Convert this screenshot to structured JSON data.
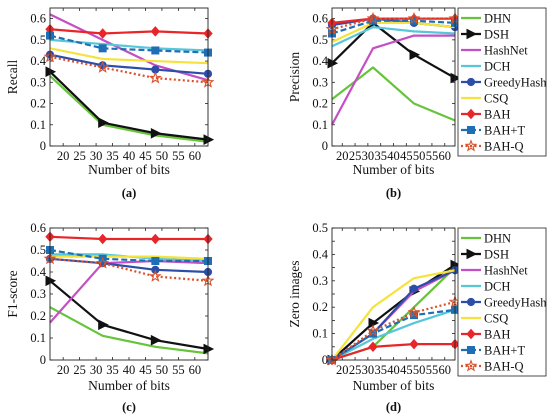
{
  "series_legend": [
    {
      "name": "DHN",
      "color": "#66c43a",
      "marker": "none",
      "dash": "solid"
    },
    {
      "name": "DSH",
      "color": "#111111",
      "marker": "triangle-right",
      "dash": "solid"
    },
    {
      "name": "HashNet",
      "color": "#c44fc4",
      "marker": "none",
      "dash": "solid"
    },
    {
      "name": "DCH",
      "color": "#56c6d9",
      "marker": "none",
      "dash": "solid"
    },
    {
      "name": "GreedyHash",
      "color": "#2d4ea8",
      "marker": "circle",
      "dash": "solid"
    },
    {
      "name": "CSQ",
      "color": "#f5e23a",
      "marker": "none",
      "dash": "solid"
    },
    {
      "name": "BAH",
      "color": "#e8262a",
      "marker": "diamond",
      "dash": "solid"
    },
    {
      "name": "BAH+T",
      "color": "#1f6fb5",
      "marker": "square",
      "dash": "dashed"
    },
    {
      "name": "BAH-Q",
      "color": "#d9512b",
      "marker": "star",
      "dash": "dotted"
    }
  ],
  "chart_data": [
    {
      "type": "line",
      "panel_label": "(a)",
      "xlabel": "Number of bits",
      "ylabel": "Recall",
      "xlim": [
        16,
        64
      ],
      "ylim": [
        0,
        0.65
      ],
      "xticks": [
        20,
        25,
        30,
        35,
        40,
        45,
        50,
        55,
        60
      ],
      "yticks": [
        0,
        0.1,
        0.2,
        0.3,
        0.4,
        0.5,
        0.6
      ],
      "x": [
        16,
        32,
        48,
        64
      ],
      "series": [
        {
          "name": "DHN",
          "values": [
            0.33,
            0.1,
            0.05,
            0.02
          ]
        },
        {
          "name": "DSH",
          "values": [
            0.35,
            0.11,
            0.06,
            0.03
          ]
        },
        {
          "name": "HashNet",
          "values": [
            0.62,
            0.5,
            0.38,
            0.31
          ]
        },
        {
          "name": "DCH",
          "values": [
            0.5,
            0.48,
            0.46,
            0.45
          ]
        },
        {
          "name": "GreedyHash",
          "values": [
            0.43,
            0.38,
            0.36,
            0.34
          ]
        },
        {
          "name": "CSQ",
          "values": [
            0.46,
            0.41,
            0.4,
            0.39
          ]
        },
        {
          "name": "BAH",
          "values": [
            0.55,
            0.53,
            0.54,
            0.53
          ]
        },
        {
          "name": "BAH+T",
          "values": [
            0.52,
            0.46,
            0.45,
            0.44
          ]
        },
        {
          "name": "BAH-Q",
          "values": [
            0.42,
            0.37,
            0.32,
            0.3
          ]
        }
      ]
    },
    {
      "type": "line",
      "panel_label": "(b)",
      "xlabel": "Number of bits",
      "ylabel": "Precision",
      "xlim": [
        16,
        64
      ],
      "ylim": [
        0,
        0.65
      ],
      "xticks": [
        20,
        25,
        30,
        35,
        40,
        45,
        50,
        55,
        60
      ],
      "yticks": [
        0,
        0.1,
        0.2,
        0.3,
        0.4,
        0.5,
        0.6
      ],
      "x": [
        16,
        32,
        48,
        64
      ],
      "series": [
        {
          "name": "DHN",
          "values": [
            0.22,
            0.37,
            0.2,
            0.12
          ]
        },
        {
          "name": "DSH",
          "values": [
            0.39,
            0.58,
            0.43,
            0.32
          ]
        },
        {
          "name": "HashNet",
          "values": [
            0.1,
            0.46,
            0.52,
            0.52
          ]
        },
        {
          "name": "DCH",
          "values": [
            0.47,
            0.56,
            0.54,
            0.53
          ]
        },
        {
          "name": "GreedyHash",
          "values": [
            0.57,
            0.6,
            0.58,
            0.56
          ]
        },
        {
          "name": "CSQ",
          "values": [
            0.49,
            0.58,
            0.58,
            0.56
          ]
        },
        {
          "name": "BAH",
          "values": [
            0.58,
            0.6,
            0.6,
            0.6
          ]
        },
        {
          "name": "BAH+T",
          "values": [
            0.53,
            0.59,
            0.59,
            0.58
          ]
        },
        {
          "name": "BAH-Q",
          "values": [
            0.55,
            0.6,
            0.6,
            0.6
          ]
        }
      ]
    },
    {
      "type": "line",
      "panel_label": "(c)",
      "xlabel": "Number of bits",
      "ylabel": "F1-score",
      "xlim": [
        16,
        64
      ],
      "ylim": [
        0,
        0.6
      ],
      "xticks": [
        20,
        25,
        30,
        35,
        40,
        45,
        50,
        55,
        60
      ],
      "yticks": [
        0,
        0.1,
        0.2,
        0.3,
        0.4,
        0.5,
        0.6
      ],
      "x": [
        16,
        32,
        48,
        64
      ],
      "series": [
        {
          "name": "DHN",
          "values": [
            0.24,
            0.11,
            0.06,
            0.03
          ]
        },
        {
          "name": "DSH",
          "values": [
            0.36,
            0.16,
            0.09,
            0.05
          ]
        },
        {
          "name": "HashNet",
          "values": [
            0.17,
            0.44,
            0.45,
            0.44
          ]
        },
        {
          "name": "DCH",
          "values": [
            0.48,
            0.48,
            0.46,
            0.45
          ]
        },
        {
          "name": "GreedyHash",
          "values": [
            0.46,
            0.44,
            0.41,
            0.4
          ]
        },
        {
          "name": "CSQ",
          "values": [
            0.47,
            0.47,
            0.47,
            0.46
          ]
        },
        {
          "name": "BAH",
          "values": [
            0.56,
            0.55,
            0.55,
            0.55
          ]
        },
        {
          "name": "BAH+T",
          "values": [
            0.5,
            0.46,
            0.45,
            0.45
          ]
        },
        {
          "name": "BAH-Q",
          "values": [
            0.46,
            0.44,
            0.38,
            0.36
          ]
        }
      ]
    },
    {
      "type": "line",
      "panel_label": "(d)",
      "xlabel": "Number of bits",
      "ylabel": "Zero images",
      "xlim": [
        16,
        64
      ],
      "ylim": [
        0,
        0.5
      ],
      "xticks": [
        20,
        25,
        30,
        35,
        40,
        45,
        50,
        55,
        60
      ],
      "yticks": [
        0,
        0.05,
        0.1,
        0.15,
        0.2,
        0.25,
        0.3,
        0.35,
        0.4,
        0.45,
        0.5
      ],
      "ytick_labels": [
        "0",
        "",
        "0.1",
        "",
        "0.2",
        "",
        "0.3",
        "",
        "0.4",
        "",
        "0.5"
      ],
      "x": [
        16,
        32,
        48,
        64
      ],
      "series": [
        {
          "name": "DHN",
          "values": [
            0,
            0.05,
            0.2,
            0.35
          ]
        },
        {
          "name": "DSH",
          "values": [
            0,
            0.14,
            0.26,
            0.36
          ]
        },
        {
          "name": "HashNet",
          "values": [
            0,
            0.1,
            0.26,
            0.34
          ]
        },
        {
          "name": "DCH",
          "values": [
            0,
            0.08,
            0.14,
            0.19
          ]
        },
        {
          "name": "GreedyHash",
          "values": [
            0,
            0.1,
            0.27,
            0.34
          ]
        },
        {
          "name": "CSQ",
          "values": [
            0,
            0.2,
            0.31,
            0.34
          ]
        },
        {
          "name": "BAH",
          "values": [
            0,
            0.05,
            0.06,
            0.06
          ]
        },
        {
          "name": "BAH+T",
          "values": [
            0,
            0.1,
            0.17,
            0.19
          ]
        },
        {
          "name": "BAH-Q",
          "values": [
            0,
            0.11,
            0.18,
            0.22
          ]
        }
      ]
    }
  ]
}
